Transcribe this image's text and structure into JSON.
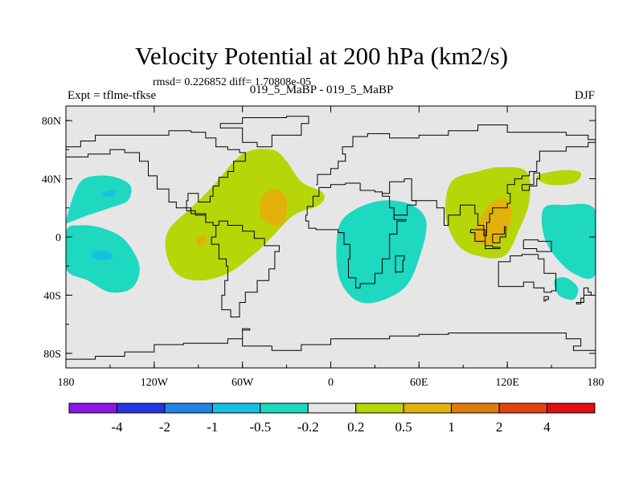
{
  "chart_data": {
    "type": "contour_map",
    "title": "Velocity Potential at 200 hPa (km2/s)",
    "stats": "rmsd= 0.226852 diff= 1.70808e-05",
    "left_label": "Expt = tflme-tfkse",
    "subtitle": "019_5_MaBP - 019_5_MaBP",
    "right_label": "DJF",
    "xlim": [
      -180,
      180
    ],
    "ylim": [
      -90,
      90
    ],
    "x_ticks": [
      {
        "value": -180,
        "label": "180"
      },
      {
        "value": -120,
        "label": "120W"
      },
      {
        "value": -60,
        "label": "60W"
      },
      {
        "value": 0,
        "label": "0"
      },
      {
        "value": 60,
        "label": "60E"
      },
      {
        "value": 120,
        "label": "120E"
      },
      {
        "value": 180,
        "label": "180"
      }
    ],
    "y_ticks": [
      {
        "value": 80,
        "label": "80N"
      },
      {
        "value": 40,
        "label": "40N"
      },
      {
        "value": 0,
        "label": "0"
      },
      {
        "value": -40,
        "label": "40S"
      },
      {
        "value": -80,
        "label": "80S"
      }
    ],
    "levels": [
      -4,
      -2,
      -1,
      -0.5,
      -0.2,
      0.2,
      0.5,
      1,
      2,
      4
    ],
    "level_labels": [
      "-4",
      "-2",
      "-1",
      "-0.5",
      "-0.2",
      "0.2",
      "0.5",
      "1",
      "2",
      "4"
    ],
    "colors": [
      "#8a17e6",
      "#2436e0",
      "#1f84e3",
      "#16c0e0",
      "#1ed8c0",
      "#e6e6e6",
      "#b6d608",
      "#e2b20a",
      "#e07c0c",
      "#e14410",
      "#e01010"
    ],
    "regions": [
      {
        "name": "north-pacific-negative",
        "level_index": 4,
        "points": [
          [
            -180,
            10
          ],
          [
            -176,
            25
          ],
          [
            -170,
            38
          ],
          [
            -160,
            42
          ],
          [
            -146,
            41
          ],
          [
            -136,
            35
          ],
          [
            -138,
            25
          ],
          [
            -150,
            20
          ],
          [
            -165,
            15
          ],
          [
            -178,
            10
          ]
        ]
      },
      {
        "name": "north-pacific-core",
        "level_index": 3,
        "points": [
          [
            -155,
            30
          ],
          [
            -150,
            32
          ],
          [
            -146,
            31
          ],
          [
            -148,
            28
          ],
          [
            -153,
            28
          ]
        ]
      },
      {
        "name": "south-pacific-negative",
        "level_index": 4,
        "points": [
          [
            -180,
            4
          ],
          [
            -170,
            8
          ],
          [
            -155,
            6
          ],
          [
            -140,
            -2
          ],
          [
            -130,
            -20
          ],
          [
            -135,
            -35
          ],
          [
            -150,
            -38
          ],
          [
            -165,
            -30
          ],
          [
            -180,
            -22
          ]
        ]
      },
      {
        "name": "south-pacific-core",
        "level_index": 3,
        "points": [
          [
            -160,
            -10
          ],
          [
            -152,
            -10
          ],
          [
            -148,
            -14
          ],
          [
            -155,
            -16
          ],
          [
            -162,
            -14
          ]
        ]
      },
      {
        "name": "atlantic-positive",
        "level_index": 6,
        "points": [
          [
            -110,
            5
          ],
          [
            -95,
            20
          ],
          [
            -80,
            35
          ],
          [
            -60,
            57
          ],
          [
            -40,
            60
          ],
          [
            -30,
            52
          ],
          [
            -20,
            38
          ],
          [
            -5,
            30
          ],
          [
            -8,
            22
          ],
          [
            -25,
            15
          ],
          [
            -40,
            0
          ],
          [
            -50,
            -10
          ],
          [
            -70,
            -25
          ],
          [
            -90,
            -30
          ],
          [
            -105,
            -25
          ],
          [
            -112,
            -10
          ]
        ]
      },
      {
        "name": "atlantic-core",
        "level_index": 7,
        "points": [
          [
            -46,
            28
          ],
          [
            -38,
            33
          ],
          [
            -30,
            26
          ],
          [
            -32,
            10
          ],
          [
            -40,
            8
          ],
          [
            -48,
            15
          ]
        ]
      },
      {
        "name": "amazon-core",
        "level_index": 7,
        "points": [
          [
            -91,
            -2
          ],
          [
            -87,
            1
          ],
          [
            -84,
            -2
          ],
          [
            -86,
            -5
          ],
          [
            -90,
            -6
          ]
        ]
      },
      {
        "name": "africa-negative",
        "level_index": 4,
        "points": [
          [
            5,
            5
          ],
          [
            15,
            18
          ],
          [
            35,
            25
          ],
          [
            55,
            22
          ],
          [
            65,
            10
          ],
          [
            60,
            -15
          ],
          [
            50,
            -35
          ],
          [
            30,
            -45
          ],
          [
            15,
            -42
          ],
          [
            5,
            -25
          ]
        ]
      },
      {
        "name": "asia-positive",
        "level_index": 6,
        "points": [
          [
            78,
            15
          ],
          [
            82,
            38
          ],
          [
            100,
            45
          ],
          [
            115,
            48
          ],
          [
            133,
            45
          ],
          [
            135,
            25
          ],
          [
            128,
            5
          ],
          [
            118,
            -13
          ],
          [
            100,
            -13
          ],
          [
            86,
            -5
          ]
        ]
      },
      {
        "name": "asia-core",
        "level_index": 7,
        "points": [
          [
            98,
            5
          ],
          [
            108,
            22
          ],
          [
            118,
            26
          ],
          [
            123,
            18
          ],
          [
            120,
            5
          ],
          [
            110,
            -5
          ],
          [
            98,
            -3
          ]
        ]
      },
      {
        "name": "north-pacific-east-positive",
        "level_index": 6,
        "points": [
          [
            140,
            42
          ],
          [
            158,
            46
          ],
          [
            170,
            44
          ],
          [
            165,
            37
          ],
          [
            148,
            36
          ]
        ]
      },
      {
        "name": "east-pacific-negative",
        "level_index": 4,
        "points": [
          [
            145,
            20
          ],
          [
            158,
            22
          ],
          [
            180,
            18
          ],
          [
            180,
            -25
          ],
          [
            165,
            -25
          ],
          [
            150,
            -10
          ],
          [
            144,
            5
          ]
        ]
      },
      {
        "name": "australia-east-negative",
        "level_index": 4,
        "points": [
          [
            152,
            -30
          ],
          [
            160,
            -28
          ],
          [
            168,
            -35
          ],
          [
            165,
            -43
          ],
          [
            155,
            -40
          ]
        ]
      }
    ],
    "coastlines": [
      [
        [
          -180,
          62
        ],
        [
          -170,
          66
        ],
        [
          -160,
          70
        ],
        [
          -140,
          70
        ],
        [
          -125,
          70
        ],
        [
          -110,
          73
        ],
        [
          -95,
          72
        ],
        [
          -85,
          68
        ],
        [
          -78,
          62
        ],
        [
          -70,
          60
        ],
        [
          -62,
          58
        ],
        [
          -58,
          52
        ],
        [
          -66,
          45
        ],
        [
          -70,
          41
        ],
        [
          -76,
          35
        ],
        [
          -80,
          28
        ],
        [
          -82,
          24
        ],
        [
          -90,
          30
        ],
        [
          -97,
          25
        ],
        [
          -98,
          18
        ],
        [
          -92,
          15
        ],
        [
          -85,
          10
        ],
        [
          -80,
          8
        ],
        [
          -76,
          8
        ]
      ],
      [
        [
          -180,
          55
        ],
        [
          -165,
          57
        ],
        [
          -150,
          60
        ],
        [
          -140,
          58
        ],
        [
          -130,
          52
        ],
        [
          -124,
          42
        ],
        [
          -118,
          33
        ],
        [
          -110,
          24
        ],
        [
          -105,
          20
        ],
        [
          -95,
          16
        ],
        [
          -85,
          12
        ]
      ],
      [
        [
          -80,
          8
        ],
        [
          -78,
          0
        ],
        [
          -81,
          -5
        ],
        [
          -76,
          -15
        ],
        [
          -71,
          -20
        ],
        [
          -70,
          -30
        ],
        [
          -72,
          -40
        ],
        [
          -74,
          -50
        ],
        [
          -68,
          -55
        ],
        [
          -62,
          -45
        ],
        [
          -58,
          -38
        ],
        [
          -50,
          -30
        ],
        [
          -42,
          -22
        ],
        [
          -38,
          -10
        ],
        [
          -35,
          -6
        ],
        [
          -45,
          -1
        ],
        [
          -52,
          4
        ],
        [
          -60,
          8
        ],
        [
          -70,
          11
        ],
        [
          -76,
          8
        ]
      ],
      [
        [
          -75,
          78
        ],
        [
          -60,
          82
        ],
        [
          -30,
          83
        ],
        [
          -15,
          78
        ],
        [
          -20,
          70
        ],
        [
          -40,
          62
        ],
        [
          -50,
          65
        ],
        [
          -60,
          75
        ],
        [
          -75,
          78
        ]
      ],
      [
        [
          -10,
          36
        ],
        [
          -9,
          43
        ],
        [
          0,
          47
        ],
        [
          5,
          52
        ],
        [
          10,
          57
        ],
        [
          8,
          62
        ],
        [
          15,
          69
        ],
        [
          25,
          71
        ],
        [
          40,
          68
        ],
        [
          60,
          70
        ],
        [
          80,
          73
        ],
        [
          100,
          77
        ],
        [
          120,
          72
        ],
        [
          140,
          72
        ],
        [
          160,
          70
        ],
        [
          175,
          67
        ],
        [
          180,
          66
        ]
      ],
      [
        [
          -17,
          15
        ],
        [
          -16,
          21
        ],
        [
          -12,
          28
        ],
        [
          -8,
          34
        ],
        [
          0,
          36
        ],
        [
          10,
          37
        ],
        [
          20,
          32
        ],
        [
          30,
          31
        ],
        [
          35,
          28
        ],
        [
          40,
          20
        ],
        [
          43,
          12
        ],
        [
          51,
          11
        ],
        [
          45,
          2
        ],
        [
          40,
          -5
        ],
        [
          40,
          -15
        ],
        [
          35,
          -25
        ],
        [
          30,
          -32
        ],
        [
          20,
          -35
        ],
        [
          17,
          -28
        ],
        [
          12,
          -15
        ],
        [
          13,
          -5
        ],
        [
          9,
          3
        ],
        [
          5,
          5
        ],
        [
          -5,
          5
        ],
        [
          -10,
          6
        ],
        [
          -15,
          11
        ],
        [
          -17,
          15
        ]
      ],
      [
        [
          35,
          30
        ],
        [
          40,
          38
        ],
        [
          50,
          40
        ],
        [
          55,
          25
        ],
        [
          58,
          22
        ],
        [
          52,
          15
        ],
        [
          43,
          12
        ]
      ],
      [
        [
          55,
          25
        ],
        [
          65,
          25
        ],
        [
          72,
          20
        ],
        [
          77,
          8
        ],
        [
          80,
          15
        ],
        [
          88,
          22
        ],
        [
          92,
          22
        ],
        [
          98,
          16
        ],
        [
          100,
          8
        ],
        [
          104,
          1
        ],
        [
          106,
          10
        ],
        [
          108,
          16
        ],
        [
          110,
          20
        ],
        [
          120,
          23
        ],
        [
          122,
          30
        ],
        [
          120,
          36
        ],
        [
          125,
          40
        ],
        [
          130,
          42
        ],
        [
          135,
          45
        ],
        [
          140,
          52
        ],
        [
          142,
          59
        ],
        [
          155,
          59
        ],
        [
          160,
          62
        ],
        [
          175,
          65
        ],
        [
          180,
          65
        ]
      ],
      [
        [
          130,
          32
        ],
        [
          135,
          35
        ],
        [
          140,
          40
        ],
        [
          142,
          44
        ],
        [
          138,
          36
        ],
        [
          130,
          32
        ]
      ],
      [
        [
          95,
          5
        ],
        [
          105,
          -6
        ],
        [
          110,
          -7
        ],
        [
          115,
          -8
        ],
        [
          105,
          -3
        ],
        [
          98,
          3
        ],
        [
          95,
          5
        ]
      ],
      [
        [
          110,
          2
        ],
        [
          118,
          7
        ],
        [
          119,
          0
        ],
        [
          115,
          -4
        ],
        [
          110,
          2
        ]
      ],
      [
        [
          131,
          -2
        ],
        [
          141,
          -3
        ],
        [
          150,
          -10
        ],
        [
          140,
          -8
        ],
        [
          131,
          -2
        ]
      ],
      [
        [
          114,
          -22
        ],
        [
          114,
          -34
        ],
        [
          123,
          -34
        ],
        [
          131,
          -31
        ],
        [
          138,
          -35
        ],
        [
          145,
          -38
        ],
        [
          150,
          -37
        ],
        [
          153,
          -25
        ],
        [
          145,
          -15
        ],
        [
          141,
          -12
        ],
        [
          136,
          -12
        ],
        [
          130,
          -13
        ],
        [
          122,
          -17
        ],
        [
          114,
          -22
        ]
      ],
      [
        [
          145,
          -41
        ],
        [
          148,
          -43
        ],
        [
          146,
          -44
        ],
        [
          145,
          -41
        ]
      ],
      [
        [
          172,
          -35
        ],
        [
          175,
          -38
        ],
        [
          177,
          -40
        ],
        [
          172,
          -45
        ],
        [
          167,
          -46
        ],
        [
          170,
          -42
        ],
        [
          172,
          -35
        ]
      ],
      [
        [
          44,
          -13
        ],
        [
          50,
          -16
        ],
        [
          49,
          -24
        ],
        [
          44,
          -25
        ],
        [
          44,
          -13
        ]
      ],
      [
        [
          -180,
          -84
        ],
        [
          -160,
          -82
        ],
        [
          -140,
          -79
        ],
        [
          -120,
          -74
        ],
        [
          -100,
          -73
        ],
        [
          -80,
          -73
        ],
        [
          -70,
          -70
        ],
        [
          -60,
          -64
        ],
        [
          -55,
          -63
        ],
        [
          -60,
          -75
        ],
        [
          -40,
          -78
        ],
        [
          -20,
          -74
        ],
        [
          0,
          -70
        ],
        [
          20,
          -70
        ],
        [
          40,
          -68
        ],
        [
          60,
          -67
        ],
        [
          80,
          -66
        ],
        [
          100,
          -66
        ],
        [
          120,
          -66
        ],
        [
          140,
          -66
        ],
        [
          160,
          -70
        ],
        [
          170,
          -75
        ],
        [
          165,
          -78
        ],
        [
          180,
          -80
        ]
      ]
    ]
  }
}
